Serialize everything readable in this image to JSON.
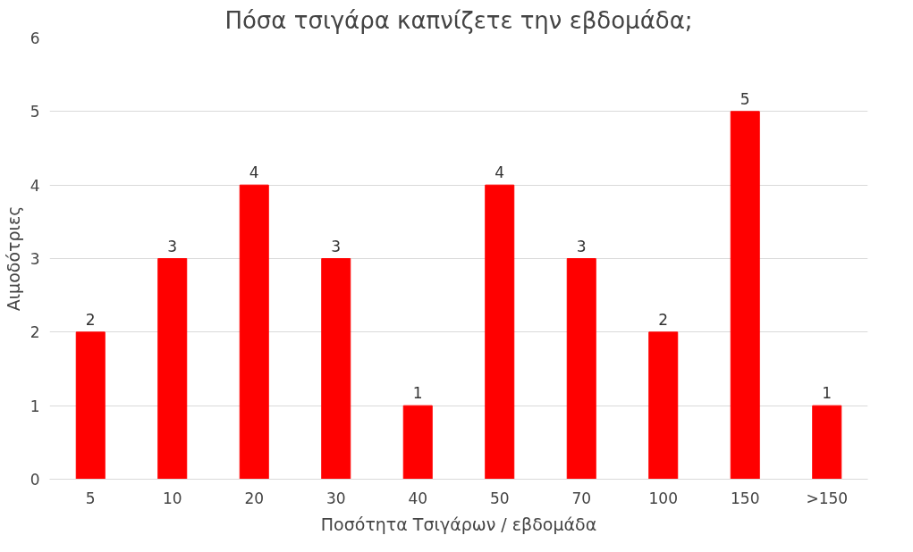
{
  "chart_data": {
    "type": "bar",
    "title": "Πόσα τσιγάρα καπνίζετε την εβδομάδα;",
    "xlabel": "Ποσότητα Τσιγάρων / εβδομάδα",
    "ylabel": "Αιμοδότριες",
    "categories": [
      "5",
      "10",
      "20",
      "30",
      "40",
      "50",
      "70",
      "100",
      "150",
      ">150"
    ],
    "values": [
      2,
      3,
      4,
      3,
      1,
      4,
      3,
      2,
      5,
      1
    ],
    "color": "#ff0000",
    "ylim": [
      0,
      6
    ],
    "yticks": [
      0,
      1,
      2,
      3,
      4,
      5,
      6
    ],
    "grid": "y",
    "data_labels": true
  }
}
